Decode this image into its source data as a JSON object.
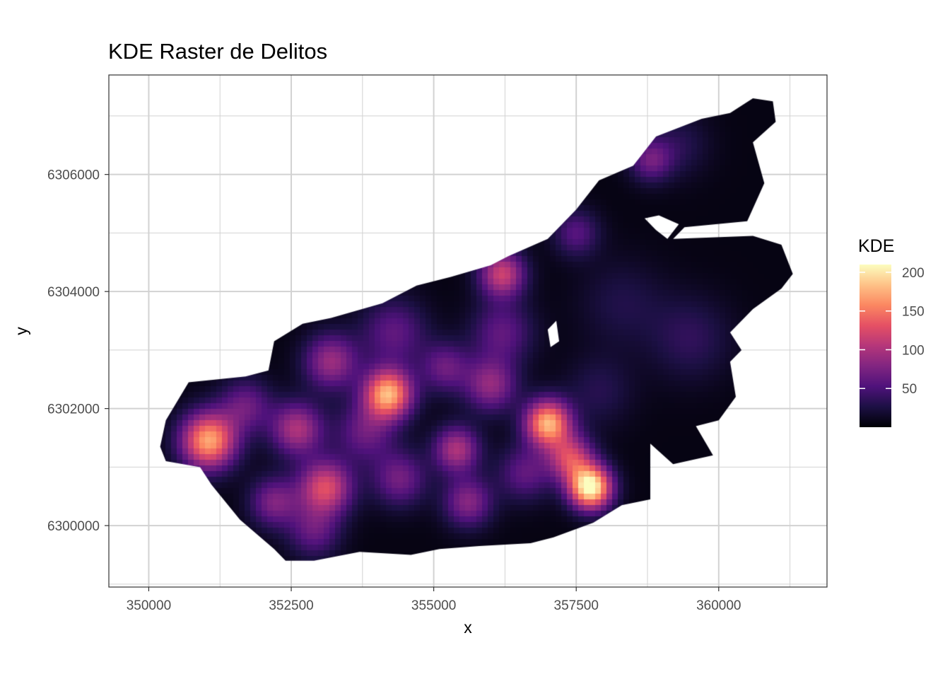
{
  "chart_data": {
    "type": "heatmap",
    "title": "KDE Raster de Delitos",
    "xlabel": "x",
    "ylabel": "y",
    "xlim": [
      349300,
      361900
    ],
    "ylim": [
      6298950,
      6307700
    ],
    "x_ticks": [
      350000,
      352500,
      355000,
      357500,
      360000
    ],
    "x_tick_labels": [
      "350000",
      "352500",
      "355000",
      "357500",
      "360000"
    ],
    "y_ticks": [
      6300000,
      6302000,
      6304000,
      6306000
    ],
    "y_tick_labels": [
      "6300000",
      "6302000",
      "6304000",
      "6306000"
    ],
    "grid": true,
    "legend": {
      "title": "KDE",
      "position": "right",
      "min": 0,
      "max": 210,
      "ticks": [
        50,
        100,
        150,
        200
      ],
      "tick_labels": [
        "50",
        "100",
        "150",
        "200"
      ]
    },
    "colorscale": [
      "#000004",
      "#1c1044",
      "#4f127b",
      "#812581",
      "#b5367a",
      "#e55064",
      "#fb8761",
      "#fec287",
      "#fcfdbf"
    ],
    "region_polygon": [
      [
        350200,
        6301350
      ],
      [
        350300,
        6301800
      ],
      [
        350700,
        6302450
      ],
      [
        351700,
        6302550
      ],
      [
        352100,
        6302650
      ],
      [
        352200,
        6303150
      ],
      [
        352700,
        6303450
      ],
      [
        353200,
        6303550
      ],
      [
        354100,
        6303800
      ],
      [
        354700,
        6304100
      ],
      [
        355300,
        6304250
      ],
      [
        356000,
        6304450
      ],
      [
        356300,
        6304600
      ],
      [
        357000,
        6304900
      ],
      [
        357500,
        6305400
      ],
      [
        357900,
        6305900
      ],
      [
        358500,
        6306150
      ],
      [
        358900,
        6306650
      ],
      [
        359700,
        6306950
      ],
      [
        360200,
        6307050
      ],
      [
        360600,
        6307300
      ],
      [
        360950,
        6307250
      ],
      [
        361000,
        6306900
      ],
      [
        360600,
        6306550
      ],
      [
        360800,
        6305850
      ],
      [
        360500,
        6305200
      ],
      [
        359400,
        6305100
      ],
      [
        359200,
        6304900
      ],
      [
        360600,
        6304950
      ],
      [
        361100,
        6304800
      ],
      [
        361300,
        6304300
      ],
      [
        361100,
        6304050
      ],
      [
        360600,
        6303700
      ],
      [
        360200,
        6303300
      ],
      [
        360400,
        6303000
      ],
      [
        360200,
        6302800
      ],
      [
        360300,
        6302200
      ],
      [
        360000,
        6301800
      ],
      [
        359600,
        6301700
      ],
      [
        359900,
        6301200
      ],
      [
        359200,
        6301050
      ],
      [
        358800,
        6301400
      ],
      [
        358800,
        6300450
      ],
      [
        358300,
        6300350
      ],
      [
        357800,
        6300050
      ],
      [
        357100,
        6299800
      ],
      [
        356700,
        6299700
      ],
      [
        355800,
        6299650
      ],
      [
        355100,
        6299600
      ],
      [
        354600,
        6299500
      ],
      [
        353700,
        6299550
      ],
      [
        352900,
        6299400
      ],
      [
        352400,
        6299400
      ],
      [
        352200,
        6299600
      ],
      [
        351600,
        6300100
      ],
      [
        351100,
        6300700
      ],
      [
        350900,
        6301000
      ],
      [
        350300,
        6301100
      ]
    ],
    "hole_polygons": [
      [
        [
          358700,
          6305250
        ],
        [
          358900,
          6305050
        ],
        [
          359100,
          6304900
        ],
        [
          359300,
          6305150
        ],
        [
          358950,
          6305300
        ]
      ],
      [
        [
          357000,
          6303350
        ],
        [
          357150,
          6303500
        ],
        [
          357200,
          6303150
        ],
        [
          357050,
          6303050
        ]
      ]
    ],
    "hotspots": [
      {
        "x": 357750,
        "y": 6300650,
        "value": 210,
        "radius": 260
      },
      {
        "x": 351050,
        "y": 6301450,
        "value": 165,
        "radius": 340
      },
      {
        "x": 357000,
        "y": 6301750,
        "value": 170,
        "radius": 280
      },
      {
        "x": 354200,
        "y": 6302250,
        "value": 170,
        "radius": 300
      },
      {
        "x": 356200,
        "y": 6304300,
        "value": 110,
        "radius": 280
      },
      {
        "x": 353100,
        "y": 6300650,
        "value": 120,
        "radius": 330
      },
      {
        "x": 357400,
        "y": 6301150,
        "value": 110,
        "radius": 280
      },
      {
        "x": 352600,
        "y": 6301650,
        "value": 95,
        "radius": 320
      },
      {
        "x": 355400,
        "y": 6301300,
        "value": 95,
        "radius": 280
      },
      {
        "x": 353200,
        "y": 6302800,
        "value": 85,
        "radius": 330
      },
      {
        "x": 355600,
        "y": 6300400,
        "value": 75,
        "radius": 300
      },
      {
        "x": 356000,
        "y": 6302400,
        "value": 80,
        "radius": 320
      },
      {
        "x": 352200,
        "y": 6300400,
        "value": 70,
        "radius": 300
      },
      {
        "x": 354400,
        "y": 6300800,
        "value": 65,
        "radius": 330
      },
      {
        "x": 355200,
        "y": 6302700,
        "value": 60,
        "radius": 300
      },
      {
        "x": 356200,
        "y": 6303300,
        "value": 55,
        "radius": 380
      },
      {
        "x": 358800,
        "y": 6306250,
        "value": 60,
        "radius": 260
      },
      {
        "x": 357500,
        "y": 6305000,
        "value": 50,
        "radius": 280
      },
      {
        "x": 354300,
        "y": 6303300,
        "value": 55,
        "radius": 400
      },
      {
        "x": 351700,
        "y": 6302050,
        "value": 60,
        "radius": 320
      },
      {
        "x": 353800,
        "y": 6301600,
        "value": 60,
        "radius": 360
      },
      {
        "x": 356600,
        "y": 6300900,
        "value": 55,
        "radius": 330
      },
      {
        "x": 352900,
        "y": 6299900,
        "value": 55,
        "radius": 320
      },
      {
        "x": 359500,
        "y": 6303200,
        "value": 30,
        "radius": 500
      },
      {
        "x": 359300,
        "y": 6306500,
        "value": 25,
        "radius": 380
      },
      {
        "x": 358300,
        "y": 6303800,
        "value": 22,
        "radius": 520
      },
      {
        "x": 357900,
        "y": 6302300,
        "value": 25,
        "radius": 420
      }
    ]
  }
}
